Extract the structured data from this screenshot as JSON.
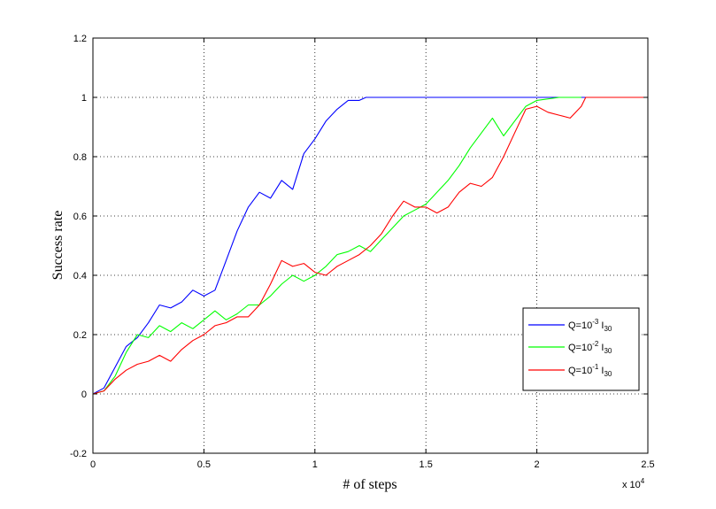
{
  "chart_data": {
    "type": "line",
    "xlabel": "# of steps",
    "ylabel": "Success rate",
    "x_multiplier": "x 10",
    "x_multiplier_exp": "4",
    "xlim": [
      0,
      2.5
    ],
    "ylim": [
      -0.2,
      1.2
    ],
    "xticks": [
      "0",
      "0.5",
      "1",
      "1.5",
      "2",
      "2.5"
    ],
    "yticks": [
      "-0.2",
      "0",
      "0.2",
      "0.4",
      "0.6",
      "0.8",
      "1",
      "1.2"
    ],
    "grid": true,
    "legend_position": "right",
    "series": [
      {
        "name_parts": [
          "Q=10",
          "-3",
          " I",
          "30"
        ],
        "color": "#0000ff",
        "points": [
          [
            0,
            0
          ],
          [
            0.05,
            0.02
          ],
          [
            0.1,
            0.09
          ],
          [
            0.15,
            0.16
          ],
          [
            0.2,
            0.19
          ],
          [
            0.25,
            0.24
          ],
          [
            0.3,
            0.3
          ],
          [
            0.35,
            0.29
          ],
          [
            0.4,
            0.31
          ],
          [
            0.45,
            0.35
          ],
          [
            0.5,
            0.33
          ],
          [
            0.55,
            0.35
          ],
          [
            0.6,
            0.45
          ],
          [
            0.65,
            0.55
          ],
          [
            0.7,
            0.63
          ],
          [
            0.75,
            0.68
          ],
          [
            0.8,
            0.66
          ],
          [
            0.85,
            0.72
          ],
          [
            0.9,
            0.69
          ],
          [
            0.95,
            0.81
          ],
          [
            1.0,
            0.86
          ],
          [
            1.05,
            0.92
          ],
          [
            1.1,
            0.96
          ],
          [
            1.15,
            0.99
          ],
          [
            1.2,
            0.99
          ],
          [
            1.23,
            1.0
          ],
          [
            1.5,
            1.0
          ],
          [
            2.0,
            1.0
          ],
          [
            2.5,
            1.0
          ]
        ]
      },
      {
        "name_parts": [
          "Q=10",
          "-2",
          " I",
          "30"
        ],
        "color": "#00ff00",
        "points": [
          [
            0,
            0
          ],
          [
            0.05,
            0.01
          ],
          [
            0.1,
            0.06
          ],
          [
            0.15,
            0.14
          ],
          [
            0.2,
            0.2
          ],
          [
            0.25,
            0.19
          ],
          [
            0.3,
            0.23
          ],
          [
            0.35,
            0.21
          ],
          [
            0.4,
            0.24
          ],
          [
            0.45,
            0.22
          ],
          [
            0.5,
            0.25
          ],
          [
            0.55,
            0.28
          ],
          [
            0.6,
            0.25
          ],
          [
            0.65,
            0.27
          ],
          [
            0.7,
            0.3
          ],
          [
            0.75,
            0.3
          ],
          [
            0.8,
            0.33
          ],
          [
            0.85,
            0.37
          ],
          [
            0.9,
            0.4
          ],
          [
            0.95,
            0.38
          ],
          [
            1.0,
            0.4
          ],
          [
            1.05,
            0.43
          ],
          [
            1.1,
            0.47
          ],
          [
            1.15,
            0.48
          ],
          [
            1.2,
            0.5
          ],
          [
            1.25,
            0.48
          ],
          [
            1.3,
            0.52
          ],
          [
            1.35,
            0.56
          ],
          [
            1.4,
            0.6
          ],
          [
            1.45,
            0.62
          ],
          [
            1.5,
            0.64
          ],
          [
            1.55,
            0.68
          ],
          [
            1.6,
            0.72
          ],
          [
            1.65,
            0.77
          ],
          [
            1.7,
            0.83
          ],
          [
            1.75,
            0.88
          ],
          [
            1.8,
            0.93
          ],
          [
            1.85,
            0.87
          ],
          [
            1.9,
            0.92
          ],
          [
            1.95,
            0.97
          ],
          [
            2.0,
            0.99
          ],
          [
            2.1,
            1.0
          ],
          [
            2.2,
            1.0
          ]
        ]
      },
      {
        "name_parts": [
          "Q=10",
          "-1",
          " I",
          "30"
        ],
        "color": "#ff0000",
        "points": [
          [
            0,
            0
          ],
          [
            0.05,
            0.01
          ],
          [
            0.1,
            0.05
          ],
          [
            0.15,
            0.08
          ],
          [
            0.2,
            0.1
          ],
          [
            0.25,
            0.11
          ],
          [
            0.3,
            0.13
          ],
          [
            0.35,
            0.11
          ],
          [
            0.4,
            0.15
          ],
          [
            0.45,
            0.18
          ],
          [
            0.5,
            0.2
          ],
          [
            0.55,
            0.23
          ],
          [
            0.6,
            0.24
          ],
          [
            0.65,
            0.26
          ],
          [
            0.7,
            0.26
          ],
          [
            0.75,
            0.3
          ],
          [
            0.8,
            0.37
          ],
          [
            0.85,
            0.45
          ],
          [
            0.9,
            0.43
          ],
          [
            0.95,
            0.44
          ],
          [
            1.0,
            0.41
          ],
          [
            1.05,
            0.4
          ],
          [
            1.1,
            0.43
          ],
          [
            1.15,
            0.45
          ],
          [
            1.2,
            0.47
          ],
          [
            1.25,
            0.5
          ],
          [
            1.3,
            0.54
          ],
          [
            1.35,
            0.6
          ],
          [
            1.4,
            0.65
          ],
          [
            1.45,
            0.63
          ],
          [
            1.5,
            0.63
          ],
          [
            1.55,
            0.61
          ],
          [
            1.6,
            0.63
          ],
          [
            1.65,
            0.68
          ],
          [
            1.7,
            0.71
          ],
          [
            1.75,
            0.7
          ],
          [
            1.8,
            0.73
          ],
          [
            1.85,
            0.8
          ],
          [
            1.9,
            0.88
          ],
          [
            1.95,
            0.96
          ],
          [
            2.0,
            0.97
          ],
          [
            2.05,
            0.95
          ],
          [
            2.1,
            0.94
          ],
          [
            2.15,
            0.93
          ],
          [
            2.2,
            0.97
          ],
          [
            2.22,
            1.0
          ],
          [
            2.5,
            1.0
          ]
        ]
      }
    ]
  }
}
